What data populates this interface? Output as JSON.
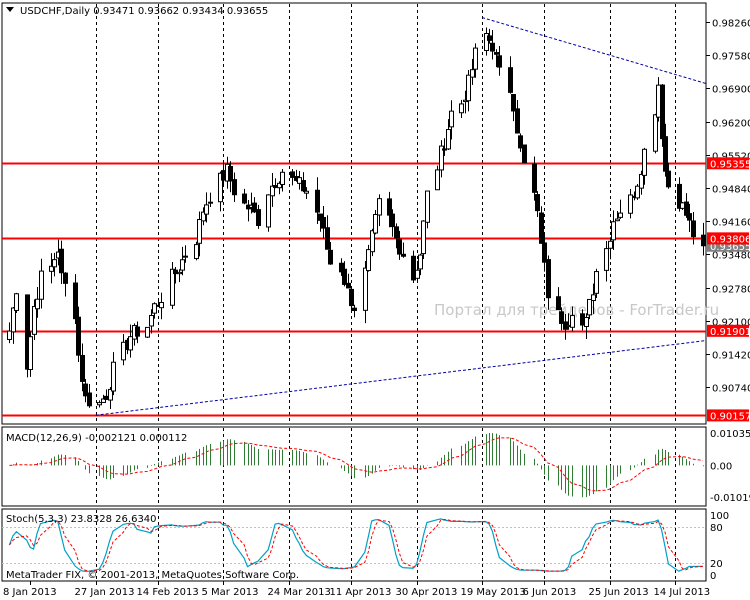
{
  "header": {
    "symbol_info": "USDCHF,Daily  0.93471 0.93662 0.93434 0.93655"
  },
  "watermark": "Портал для трейдеров - ForTrader.ru",
  "copyright": "MetaTrader FIX, © 2001-2013, MetaQuotes Software Corp.",
  "colors": {
    "bull": "#000000",
    "bear": "#000000",
    "hline": "#ff0000",
    "trend": "#0000aa",
    "grid": "#000000",
    "macd_hist": "#2e7d32",
    "macd_signal": "#ff0000",
    "stoch_main": "#00a0c8",
    "stoch_signal": "#ff0000",
    "price_badge": "#ff0000"
  },
  "chart_data": [
    {
      "type": "candlestick",
      "title": "USDCHF,Daily",
      "ylim": [
        0.8998,
        0.9866
      ],
      "price_ticks": [
        "0.98260",
        "0.97580",
        "0.96900",
        "0.96200",
        "0.95520",
        "0.94840",
        "0.94160",
        "0.93480",
        "0.92780",
        "0.92100",
        "0.91420",
        "0.90740"
      ],
      "date_labels": [
        "8 Jan 2013",
        "27 Jan 2013",
        "14 Feb 2013",
        "5 Mar 2013",
        "24 Mar 2013",
        "11 Apr 2013",
        "30 Apr 2013",
        "19 May 2013",
        "6 Jun 2013",
        "25 Jun 2013",
        "14 Jul 2013"
      ],
      "current_price": "0.93655",
      "horizontal_levels": [
        {
          "value": 0.95355,
          "label": "0.95355"
        },
        {
          "value": 0.93806,
          "label": "0.93806"
        },
        {
          "value": 0.91901,
          "label": "0.91901"
        },
        {
          "value": 0.90157,
          "label": "0.90157"
        }
      ],
      "trendlines": [
        {
          "from": {
            "date": "19 May 2013",
            "price": 0.9836
          },
          "to": {
            "date": "22 Jul 2013 (right edge)",
            "price": 0.97
          }
        },
        {
          "from": {
            "date": "27 Jan 2013",
            "price": 0.9016
          },
          "to": {
            "date": "22 Jul 2013 (right edge)",
            "price": 0.917
          }
        }
      ],
      "anchors": [
        [
          "2013-01-02",
          0.919
        ],
        [
          "2013-01-04",
          0.928
        ],
        [
          "2013-01-07",
          0.912
        ],
        [
          "2013-01-09",
          0.924
        ],
        [
          "2013-01-11",
          0.93
        ],
        [
          "2013-01-14",
          0.932
        ],
        [
          "2013-01-16",
          0.936
        ],
        [
          "2013-01-17",
          0.93
        ],
        [
          "2013-01-21",
          0.923
        ],
        [
          "2013-01-22",
          0.914
        ],
        [
          "2013-01-24",
          0.905
        ],
        [
          "2013-01-28",
          0.904
        ],
        [
          "2013-01-30",
          0.906
        ],
        [
          "2013-02-01",
          0.911
        ],
        [
          "2013-02-04",
          0.915
        ],
        [
          "2013-02-06",
          0.918
        ],
        [
          "2013-02-08",
          0.919
        ],
        [
          "2013-02-11",
          0.92
        ],
        [
          "2013-02-13",
          0.924
        ],
        [
          "2013-02-15",
          0.926
        ],
        [
          "2013-02-18",
          0.93
        ],
        [
          "2013-02-20",
          0.932
        ],
        [
          "2013-02-22",
          0.935
        ],
        [
          "2013-02-25",
          0.938
        ],
        [
          "2013-02-27",
          0.944
        ],
        [
          "2013-03-01",
          0.947
        ],
        [
          "2013-03-04",
          0.95
        ],
        [
          "2013-03-06",
          0.952
        ],
        [
          "2013-03-08",
          0.948
        ],
        [
          "2013-03-11",
          0.945
        ],
        [
          "2013-03-13",
          0.944
        ],
        [
          "2013-03-15",
          0.942
        ],
        [
          "2013-03-18",
          0.948
        ],
        [
          "2013-03-20",
          0.95
        ],
        [
          "2013-03-22",
          0.952
        ],
        [
          "2013-03-25",
          0.95
        ],
        [
          "2013-03-27",
          0.949
        ],
        [
          "2013-03-29",
          0.948
        ],
        [
          "2013-04-02",
          0.942
        ],
        [
          "2013-04-04",
          0.936
        ],
        [
          "2013-04-05",
          0.933
        ],
        [
          "2013-04-08",
          0.932
        ],
        [
          "2013-04-10",
          0.927
        ],
        [
          "2013-04-12",
          0.924
        ],
        [
          "2013-04-15",
          0.931
        ],
        [
          "2013-04-17",
          0.938
        ],
        [
          "2013-04-19",
          0.945
        ],
        [
          "2013-04-22",
          0.942
        ],
        [
          "2013-04-24",
          0.938
        ],
        [
          "2013-04-26",
          0.935
        ],
        [
          "2013-04-29",
          0.93
        ],
        [
          "2013-05-01",
          0.935
        ],
        [
          "2013-05-03",
          0.947
        ],
        [
          "2013-05-06",
          0.953
        ],
        [
          "2013-05-08",
          0.958
        ],
        [
          "2013-05-10",
          0.964
        ],
        [
          "2013-05-13",
          0.966
        ],
        [
          "2013-05-15",
          0.97
        ],
        [
          "2013-05-17",
          0.976
        ],
        [
          "2013-05-20",
          0.98
        ],
        [
          "2013-05-22",
          0.978
        ],
        [
          "2013-05-24",
          0.972
        ],
        [
          "2013-05-27",
          0.969
        ],
        [
          "2013-05-28",
          0.966
        ],
        [
          "2013-05-30",
          0.956
        ],
        [
          "2013-05-31",
          0.953
        ],
        [
          "2013-06-03",
          0.947
        ],
        [
          "2013-06-05",
          0.938
        ],
        [
          "2013-06-06",
          0.932
        ],
        [
          "2013-06-07",
          0.927
        ],
        [
          "2013-06-10",
          0.925
        ],
        [
          "2013-06-11",
          0.922
        ],
        [
          "2013-06-13",
          0.92
        ],
        [
          "2013-06-14",
          0.921
        ],
        [
          "2013-06-17",
          0.919
        ],
        [
          "2013-06-18",
          0.923
        ],
        [
          "2013-06-20",
          0.928
        ],
        [
          "2013-06-21",
          0.932
        ],
        [
          "2013-06-24",
          0.936
        ],
        [
          "2013-06-26",
          0.942
        ],
        [
          "2013-06-28",
          0.944
        ],
        [
          "2013-07-01",
          0.946
        ],
        [
          "2013-07-03",
          0.95
        ],
        [
          "2013-07-05",
          0.956
        ],
        [
          "2013-07-08",
          0.965
        ],
        [
          "2013-07-09",
          0.97
        ],
        [
          "2013-07-10",
          0.96
        ],
        [
          "2013-07-11",
          0.952
        ],
        [
          "2013-07-12",
          0.949
        ],
        [
          "2013-07-15",
          0.946
        ],
        [
          "2013-07-17",
          0.943
        ],
        [
          "2013-07-19",
          0.939
        ],
        [
          "2013-07-22",
          0.9366
        ]
      ]
    },
    {
      "type": "macd",
      "title": "MACD(12,26,9) -0.002121 0.000112",
      "ylim": [
        -0.013,
        0.0123
      ],
      "ticks": [
        "0.010359",
        "0.00",
        "-0.010197"
      ]
    },
    {
      "type": "stochastic",
      "title": "Stoch(5,3,3) 23.8328 26.6340",
      "ylim": [
        0,
        100
      ],
      "ticks": [
        "100",
        "80",
        "20",
        "0"
      ]
    }
  ]
}
